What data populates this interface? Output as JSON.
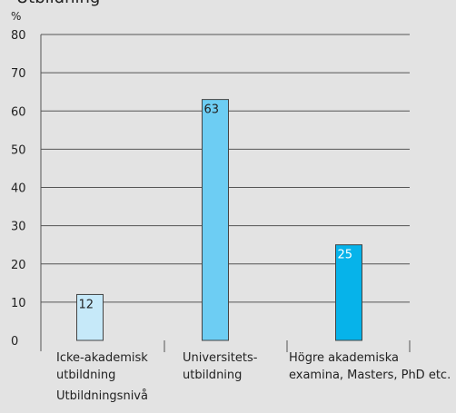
{
  "chart_data": {
    "type": "bar",
    "title": "Utbildning",
    "ylabel": "%",
    "xlabel": "Utbildningsnivå",
    "ylim": [
      0,
      80
    ],
    "yticks": [
      0,
      10,
      20,
      30,
      40,
      50,
      60,
      70,
      80
    ],
    "grid": true,
    "categories": [
      [
        "Icke-akademisk",
        "utbildning"
      ],
      [
        "Universitets-",
        "utbildning"
      ],
      [
        "Högre akademiska",
        "examina, Masters, PhD etc."
      ]
    ],
    "values": [
      12,
      63,
      25
    ],
    "colors": [
      "#c6e9f9",
      "#6dcdf3",
      "#06b3ea"
    ],
    "label_colors": [
      "#222222",
      "#222222",
      "#ffffff"
    ],
    "grid_color": "#555555",
    "bar_stroke": "#444444"
  }
}
